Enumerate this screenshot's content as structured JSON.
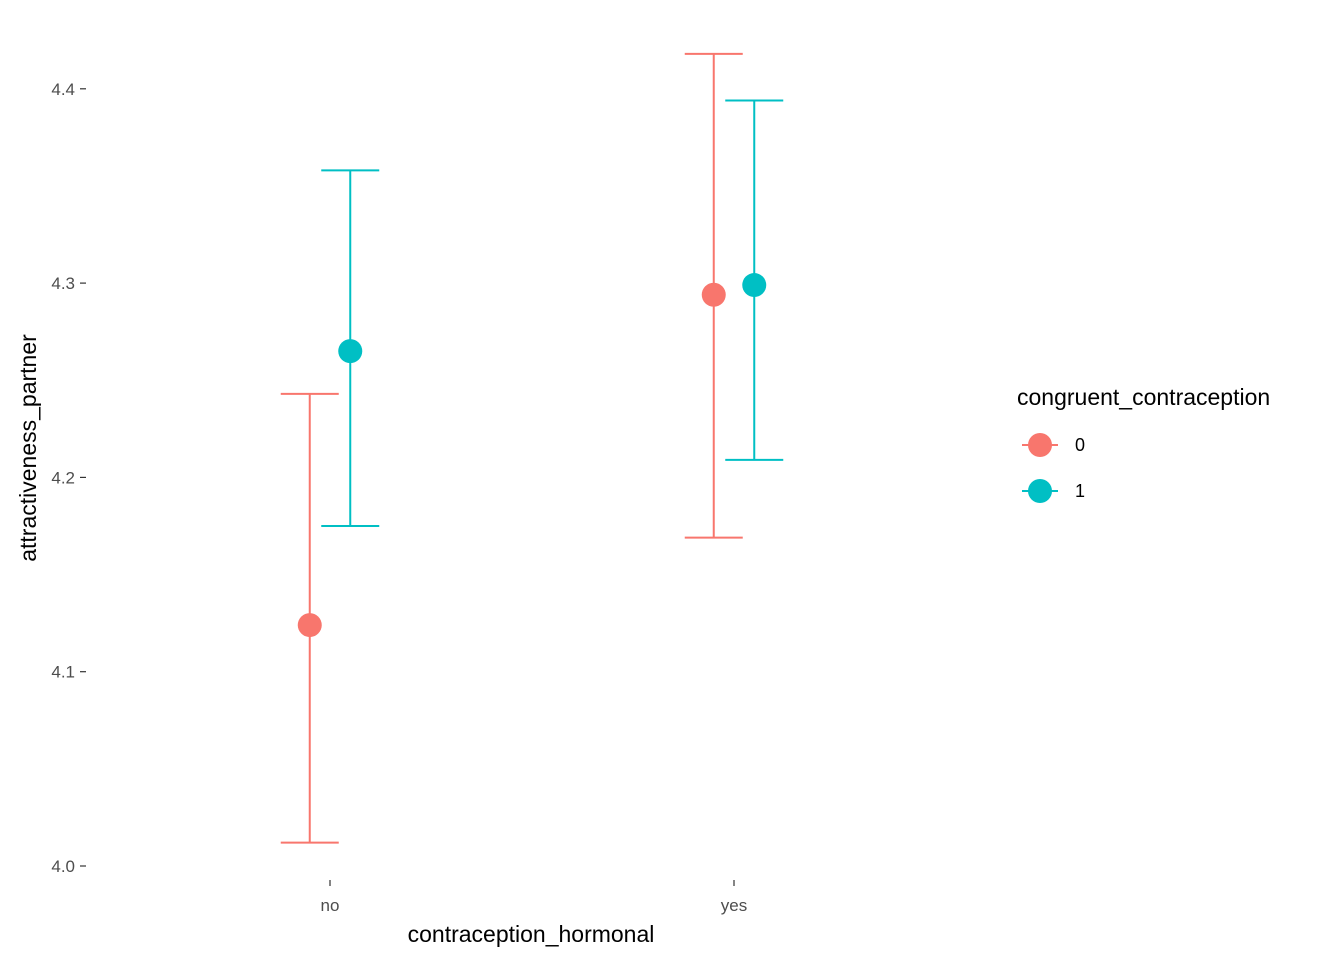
{
  "chart_data": {
    "type": "scatter",
    "subtype": "point-with-errorbars",
    "categories": [
      "no",
      "yes"
    ],
    "xlabel": "contraception_hormonal",
    "ylabel": "attractiveness_partner",
    "ylim": [
      4.0,
      4.42
    ],
    "yticks": [
      "4.0",
      "4.1",
      "4.2",
      "4.3",
      "4.4"
    ],
    "grid": false,
    "legend": {
      "title": "congruent_contraception",
      "position": "right"
    },
    "series": [
      {
        "name": "0",
        "color": "#F8766D",
        "values": [
          4.124,
          4.294
        ],
        "lower": [
          4.012,
          4.169
        ],
        "upper": [
          4.243,
          4.418
        ]
      },
      {
        "name": "1",
        "color": "#00BFC4",
        "values": [
          4.265,
          4.299
        ],
        "lower": [
          4.175,
          4.209
        ],
        "upper": [
          4.358,
          4.394
        ]
      }
    ]
  }
}
